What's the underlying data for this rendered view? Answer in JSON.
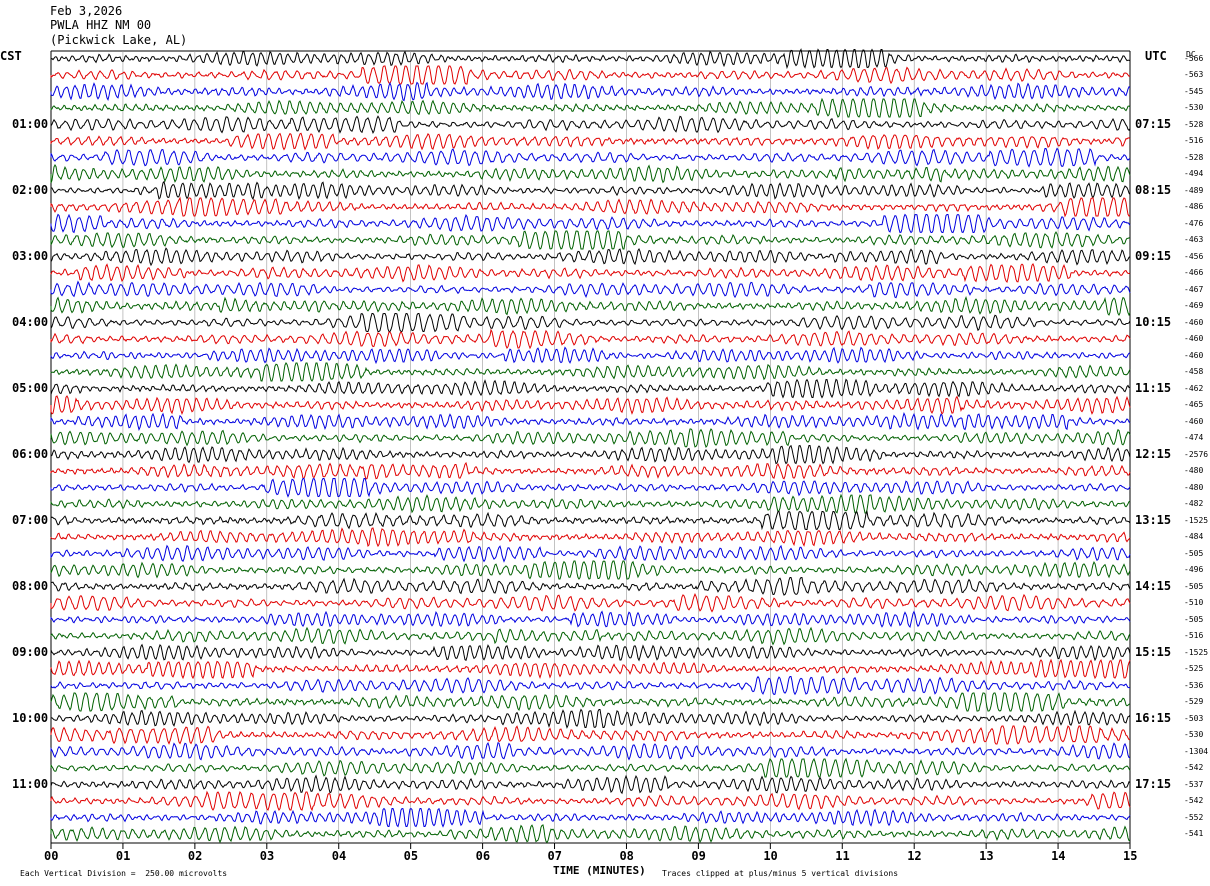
{
  "header": {
    "date": "Feb 3,2026",
    "station": "PWLA HHZ NM 00",
    "location": "(Pickwick Lake, AL)"
  },
  "left_timezone": "CST",
  "right_timezone": "UTC",
  "dc_label": "DC",
  "left_times": [
    "01:00",
    "02:00",
    "03:00",
    "04:00",
    "05:00",
    "06:00",
    "07:00",
    "08:00",
    "09:00",
    "10:00",
    "11:00"
  ],
  "right_times": [
    "07:15",
    "08:15",
    "09:15",
    "10:15",
    "11:15",
    "12:15",
    "13:15",
    "14:15",
    "15:15",
    "16:15",
    "17:15"
  ],
  "x_ticks": [
    "00",
    "01",
    "02",
    "03",
    "04",
    "05",
    "06",
    "07",
    "08",
    "09",
    "10",
    "11",
    "12",
    "13",
    "14",
    "15"
  ],
  "x_label": "TIME (MINUTES)",
  "scale_note": "Each Vertical Division =  250.00 microvolts",
  "clip_note": "Traces clipped at plus/minus 5 vertical divisions",
  "trace_colors": [
    "#000000",
    "#e00000",
    "#0000e0",
    "#006000"
  ],
  "dc_offsets": [
    "-566",
    "-563",
    "-545",
    "-530",
    "-528",
    "-516",
    "-528",
    "-494",
    "-489",
    "-486",
    "-476",
    "-463",
    "-456",
    "-466",
    "-467",
    "-469",
    "-460",
    "-460",
    "-460",
    "-458",
    "-462",
    "-465",
    "-460",
    "-474",
    "-2576",
    "-480",
    "-480",
    "-482",
    "-1525",
    "-484",
    "-505",
    "-496",
    "-505",
    "-510",
    "-505",
    "-516",
    "-1525",
    "-525",
    "-536",
    "-529",
    "-503",
    "-530",
    "-1304",
    "-542",
    "-537",
    "-542",
    "-552",
    "-541"
  ]
}
